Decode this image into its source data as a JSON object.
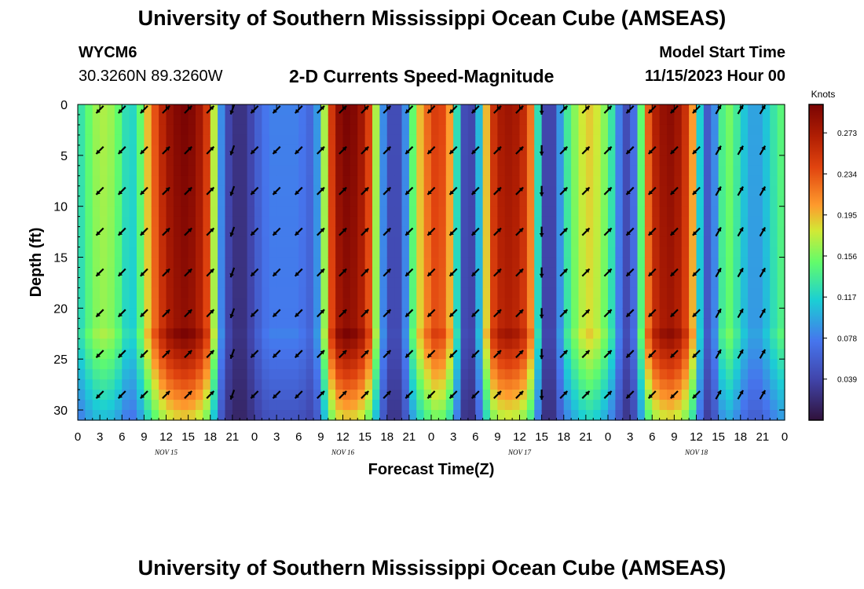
{
  "header": {
    "title": "University of Southern Mississippi Ocean Cube (AMSEAS)",
    "station": "WYCM6",
    "coords": "30.3260N  89.3260W",
    "plot_title": "2-D Currents Speed-Magnitude",
    "model_start_label": "Model Start Time",
    "model_start_value": "11/15/2023 Hour 00"
  },
  "footer": {
    "title": "University of Southern Mississippi Ocean Cube (AMSEAS)"
  },
  "chart_data": {
    "type": "heatmap",
    "title": "2-D Currents Speed-Magnitude",
    "xlabel": "Forecast Time(Z)",
    "ylabel": "Depth (ft)",
    "xlim": [
      0,
      96
    ],
    "ylim": [
      0,
      31
    ],
    "x_ticks": [
      0,
      3,
      6,
      9,
      12,
      15,
      18,
      21,
      24,
      27,
      30,
      33,
      36,
      39,
      42,
      45,
      48,
      51,
      54,
      57,
      60,
      63,
      66,
      69,
      72,
      75,
      78,
      81,
      84,
      87,
      90,
      93,
      96
    ],
    "x_tick_labels": [
      "0",
      "3",
      "6",
      "9",
      "12",
      "15",
      "18",
      "21",
      "0",
      "3",
      "6",
      "9",
      "12",
      "15",
      "18",
      "21",
      "0",
      "3",
      "6",
      "9",
      "12",
      "15",
      "18",
      "21",
      "0",
      "3",
      "6",
      "9",
      "12",
      "15",
      "18",
      "21",
      "0"
    ],
    "day_labels": [
      {
        "label": "NOV 15",
        "hour": 12
      },
      {
        "label": "NOV 16",
        "hour": 36
      },
      {
        "label": "NOV 17",
        "hour": 60
      },
      {
        "label": "NOV 18",
        "hour": 84
      }
    ],
    "y_ticks": [
      0,
      5,
      10,
      15,
      20,
      25,
      30
    ],
    "y_tick_labels": [
      "0",
      "5",
      "10",
      "15",
      "20",
      "25",
      "30"
    ],
    "colorbar": {
      "title": "Knots",
      "min": 0,
      "max": 0.3,
      "tick_values": [
        0.039,
        0.078,
        0.117,
        0.156,
        0.195,
        0.234,
        0.273
      ],
      "tick_labels": [
        "0.039",
        "0.078",
        "0.117",
        "0.156",
        "0.195",
        "0.234",
        "0.273"
      ]
    },
    "speed_profile_knots": [
      {
        "hour": 0,
        "speed": 0.12
      },
      {
        "hour": 1,
        "speed": 0.14
      },
      {
        "hour": 2,
        "speed": 0.16
      },
      {
        "hour": 3,
        "speed": 0.17
      },
      {
        "hour": 4,
        "speed": 0.17
      },
      {
        "hour": 5,
        "speed": 0.16
      },
      {
        "hour": 6,
        "speed": 0.14
      },
      {
        "hour": 7,
        "speed": 0.11
      },
      {
        "hour": 8,
        "speed": 0.13
      },
      {
        "hour": 9,
        "speed": 0.17
      },
      {
        "hour": 10,
        "speed": 0.22
      },
      {
        "hour": 11,
        "speed": 0.25
      },
      {
        "hour": 12,
        "speed": 0.28
      },
      {
        "hour": 13,
        "speed": 0.29
      },
      {
        "hour": 14,
        "speed": 0.3
      },
      {
        "hour": 15,
        "speed": 0.3
      },
      {
        "hour": 16,
        "speed": 0.29
      },
      {
        "hour": 17,
        "speed": 0.27
      },
      {
        "hour": 18,
        "speed": 0.23
      },
      {
        "hour": 19,
        "speed": 0.12
      },
      {
        "hour": 20,
        "speed": 0.05
      },
      {
        "hour": 21,
        "speed": 0.03
      },
      {
        "hour": 22,
        "speed": 0.02
      },
      {
        "hour": 23,
        "speed": 0.03
      },
      {
        "hour": 24,
        "speed": 0.05
      },
      {
        "hour": 25,
        "speed": 0.07
      },
      {
        "hour": 26,
        "speed": 0.08
      },
      {
        "hour": 27,
        "speed": 0.08
      },
      {
        "hour": 28,
        "speed": 0.08
      },
      {
        "hour": 29,
        "speed": 0.08
      },
      {
        "hour": 30,
        "speed": 0.08
      },
      {
        "hour": 31,
        "speed": 0.07
      },
      {
        "hour": 32,
        "speed": 0.06
      },
      {
        "hour": 33,
        "speed": 0.12
      },
      {
        "hour": 34,
        "speed": 0.22
      },
      {
        "hour": 35,
        "speed": 0.28
      },
      {
        "hour": 36,
        "speed": 0.3
      },
      {
        "hour": 37,
        "speed": 0.3
      },
      {
        "hour": 38,
        "speed": 0.29
      },
      {
        "hour": 39,
        "speed": 0.27
      },
      {
        "hour": 40,
        "speed": 0.22
      },
      {
        "hour": 41,
        "speed": 0.12
      },
      {
        "hour": 42,
        "speed": 0.05
      },
      {
        "hour": 43,
        "speed": 0.04
      },
      {
        "hour": 44,
        "speed": 0.05
      },
      {
        "hour": 45,
        "speed": 0.12
      },
      {
        "hour": 46,
        "speed": 0.18
      },
      {
        "hour": 47,
        "speed": 0.21
      },
      {
        "hour": 48,
        "speed": 0.24
      },
      {
        "hour": 49,
        "speed": 0.25
      },
      {
        "hour": 50,
        "speed": 0.23
      },
      {
        "hour": 51,
        "speed": 0.18
      },
      {
        "hour": 52,
        "speed": 0.07
      },
      {
        "hour": 53,
        "speed": 0.02
      },
      {
        "hour": 54,
        "speed": 0.06
      },
      {
        "hour": 55,
        "speed": 0.15
      },
      {
        "hour": 56,
        "speed": 0.24
      },
      {
        "hour": 57,
        "speed": 0.27
      },
      {
        "hour": 58,
        "speed": 0.28
      },
      {
        "hour": 59,
        "speed": 0.28
      },
      {
        "hour": 60,
        "speed": 0.27
      },
      {
        "hour": 61,
        "speed": 0.25
      },
      {
        "hour": 62,
        "speed": 0.19
      },
      {
        "hour": 63,
        "speed": 0.06
      },
      {
        "hour": 64,
        "speed": 0.02
      },
      {
        "hour": 65,
        "speed": 0.06
      },
      {
        "hour": 66,
        "speed": 0.12
      },
      {
        "hour": 67,
        "speed": 0.15
      },
      {
        "hour": 68,
        "speed": 0.17
      },
      {
        "hour": 69,
        "speed": 0.19
      },
      {
        "hour": 70,
        "speed": 0.19
      },
      {
        "hour": 71,
        "speed": 0.17
      },
      {
        "hour": 72,
        "speed": 0.15
      },
      {
        "hour": 73,
        "speed": 0.11
      },
      {
        "hour": 74,
        "speed": 0.05
      },
      {
        "hour": 75,
        "speed": 0.04
      },
      {
        "hour": 76,
        "speed": 0.1
      },
      {
        "hour": 77,
        "speed": 0.2
      },
      {
        "hour": 78,
        "speed": 0.26
      },
      {
        "hour": 79,
        "speed": 0.28
      },
      {
        "hour": 80,
        "speed": 0.29
      },
      {
        "hour": 81,
        "speed": 0.29
      },
      {
        "hour": 82,
        "speed": 0.27
      },
      {
        "hour": 83,
        "speed": 0.24
      },
      {
        "hour": 84,
        "speed": 0.17
      },
      {
        "hour": 85,
        "speed": 0.06
      },
      {
        "hour": 86,
        "speed": 0.05
      },
      {
        "hour": 87,
        "speed": 0.12
      },
      {
        "hour": 88,
        "speed": 0.16
      },
      {
        "hour": 89,
        "speed": 0.15
      },
      {
        "hour": 90,
        "speed": 0.12
      },
      {
        "hour": 91,
        "speed": 0.1
      },
      {
        "hour": 92,
        "speed": 0.09
      },
      {
        "hour": 93,
        "speed": 0.1
      },
      {
        "hour": 94,
        "speed": 0.12
      },
      {
        "hour": 95,
        "speed": 0.14
      },
      {
        "hour": 96,
        "speed": 0.15
      }
    ],
    "direction_profile_deg": [
      {
        "hour": 0,
        "deg": 225
      },
      {
        "hour": 10,
        "deg": 45
      },
      {
        "hour": 20,
        "deg": 45
      },
      {
        "hour": 21,
        "deg": 200
      },
      {
        "hour": 24,
        "deg": 225
      },
      {
        "hour": 33,
        "deg": 45
      },
      {
        "hour": 43,
        "deg": 45
      },
      {
        "hour": 45,
        "deg": 225
      },
      {
        "hour": 50,
        "deg": 225
      },
      {
        "hour": 55,
        "deg": 45
      },
      {
        "hour": 63,
        "deg": 180
      },
      {
        "hour": 65,
        "deg": 45
      },
      {
        "hour": 71,
        "deg": 45
      },
      {
        "hour": 74,
        "deg": 225
      },
      {
        "hour": 80,
        "deg": 225
      },
      {
        "hour": 85,
        "deg": 30
      },
      {
        "hour": 96,
        "deg": 45
      }
    ]
  }
}
